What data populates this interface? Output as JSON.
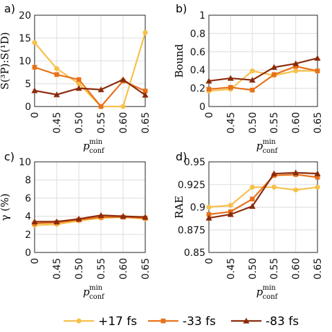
{
  "figure": {
    "xlabel_main": "p",
    "xlabel_sup": "min",
    "xlabel_sub": "conf",
    "legend": [
      {
        "name": "+17 fs",
        "color": "#F7C04A",
        "marker": "circle"
      },
      {
        "name": "-33 fs",
        "color": "#E8711A",
        "marker": "square"
      },
      {
        "name": "-83 fs",
        "color": "#8A2A0A",
        "marker": "triangle"
      }
    ]
  },
  "chart_data": [
    {
      "panel": "a)",
      "type": "line",
      "ylabel": "S(³P):S(¹D)",
      "categories": [
        "0",
        "0.45",
        "0.50",
        "0.55",
        "0.60",
        "0.65"
      ],
      "ylim": [
        0,
        20
      ],
      "yticks": [
        "0",
        "5",
        "10",
        "15",
        "20"
      ],
      "series": [
        {
          "name": "+17 fs",
          "values": [
            14,
            8.3,
            5.0,
            0,
            0,
            16.2
          ]
        },
        {
          "name": "-33 fs",
          "values": [
            8.6,
            7.0,
            5.9,
            0,
            5.6,
            3.4
          ]
        },
        {
          "name": "-83 fs",
          "values": [
            3.5,
            2.6,
            4.0,
            3.7,
            5.9,
            2.5
          ]
        }
      ]
    },
    {
      "panel": "b)",
      "type": "line",
      "ylabel": "Bound",
      "categories": [
        "0",
        "0.45",
        "0.50",
        "0.55",
        "0.60",
        "0.65"
      ],
      "ylim": [
        0,
        1
      ],
      "yticks": [
        "0",
        "0.2",
        "0.4",
        "0.6",
        "0.8",
        "1"
      ],
      "series": [
        {
          "name": "+17 fs",
          "values": [
            0.17,
            0.19,
            0.39,
            0.34,
            0.39,
            0.39
          ]
        },
        {
          "name": "-33 fs",
          "values": [
            0.19,
            0.21,
            0.18,
            0.35,
            0.44,
            0.39
          ]
        },
        {
          "name": "-83 fs",
          "values": [
            0.28,
            0.31,
            0.29,
            0.43,
            0.47,
            0.53
          ]
        }
      ]
    },
    {
      "panel": "c)",
      "type": "line",
      "ylabel": "γ (%)",
      "categories": [
        "0",
        "0.45",
        "0.50",
        "0.55",
        "0.60",
        "0.65"
      ],
      "ylim": [
        0,
        10
      ],
      "yticks": [
        "0",
        "2",
        "4",
        "6",
        "8",
        "10"
      ],
      "series": [
        {
          "name": "+17 fs",
          "values": [
            3.0,
            3.1,
            3.5,
            3.8,
            3.9,
            3.7
          ]
        },
        {
          "name": "-33 fs",
          "values": [
            3.2,
            3.3,
            3.6,
            3.9,
            3.9,
            3.8
          ]
        },
        {
          "name": "-83 fs",
          "values": [
            3.4,
            3.4,
            3.7,
            4.1,
            4.0,
            3.9
          ]
        }
      ]
    },
    {
      "panel": "d)",
      "type": "line",
      "ylabel": "RAE",
      "categories": [
        "0",
        "0.45",
        "0.50",
        "0.55",
        "0.60",
        "0.65"
      ],
      "ylim": [
        0.85,
        0.95
      ],
      "yticks": [
        "0.85",
        "0.875",
        "0.9",
        "0.925",
        "0.95"
      ],
      "series": [
        {
          "name": "+17 fs",
          "values": [
            0.9,
            0.902,
            0.922,
            0.922,
            0.919,
            0.922
          ]
        },
        {
          "name": "-33 fs",
          "values": [
            0.892,
            0.895,
            0.909,
            0.935,
            0.936,
            0.933
          ]
        },
        {
          "name": "-83 fs",
          "values": [
            0.888,
            0.892,
            0.901,
            0.937,
            0.938,
            0.937
          ]
        }
      ]
    }
  ]
}
